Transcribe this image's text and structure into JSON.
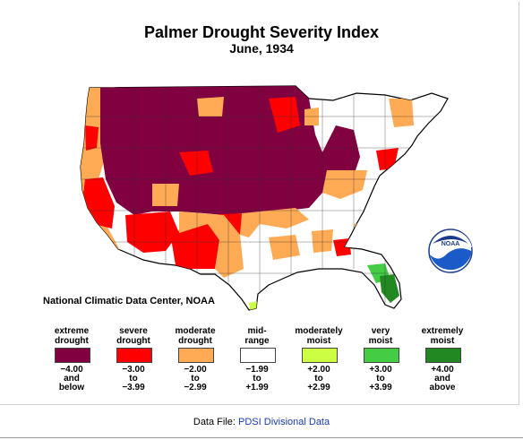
{
  "title": "Palmer Drought Severity Index",
  "subtitle": "June, 1934",
  "credit": "National Climatic Data Center, NOAA",
  "logo_text": "NOAA",
  "footer": {
    "label": "Data File:",
    "link": "PDSI Divisional Data"
  },
  "colors": {
    "extreme": "#800040",
    "severe": "#ff0000",
    "moderate": "#ffaa55",
    "mid": "#ffffff",
    "moderately_moist": "#ccff44",
    "very_moist": "#44cc44",
    "extremely_moist": "#228822"
  },
  "legend": [
    {
      "head": [
        "extreme",
        "drought"
      ],
      "values": [
        "−4.00",
        "and",
        "below"
      ],
      "color": "#800040"
    },
    {
      "head": [
        "severe",
        "drought"
      ],
      "values": [
        "−3.00",
        "to",
        "−3.99"
      ],
      "color": "#ff0000"
    },
    {
      "head": [
        "moderate",
        "drought"
      ],
      "values": [
        "−2.00",
        "to",
        "−2.99"
      ],
      "color": "#ffaa55"
    },
    {
      "head": [
        "mid-",
        "range"
      ],
      "values": [
        "−1.99",
        "to",
        "+1.99"
      ],
      "color": "#ffffff"
    },
    {
      "head": [
        "moderately",
        "moist"
      ],
      "values": [
        "+2.00",
        "to",
        "+2.99"
      ],
      "color": "#ccff44"
    },
    {
      "head": [
        "very",
        "moist"
      ],
      "values": [
        "+3.00",
        "to",
        "+3.99"
      ],
      "color": "#44cc44"
    },
    {
      "head": [
        "extremely",
        "moist"
      ],
      "values": [
        "+4.00",
        "and",
        "above"
      ],
      "color": "#228822"
    }
  ]
}
